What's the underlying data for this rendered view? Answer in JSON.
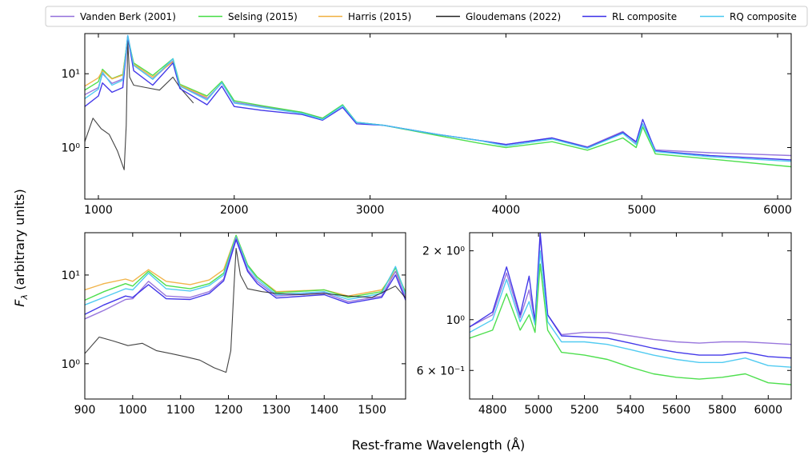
{
  "legend": {
    "entries": [
      {
        "key": "vdb",
        "label": "Vanden Berk (2001)",
        "color": "#9370db"
      },
      {
        "key": "selsing",
        "label": "Selsing (2015)",
        "color": "#44dd44"
      },
      {
        "key": "harris",
        "label": "Harris (2015)",
        "color": "#f0b040"
      },
      {
        "key": "glou",
        "label": "Gloudemans (2022)",
        "color": "#222222"
      },
      {
        "key": "rl",
        "label": "RL composite",
        "color": "#3a2ee8"
      },
      {
        "key": "rq",
        "label": "RQ composite",
        "color": "#48c8f0"
      }
    ],
    "placement": "top, outside"
  },
  "axes_labels": {
    "ylabel": "F_λ (arbitrary units)",
    "ylabel_main": "F",
    "ylabel_sub": "λ",
    "ylabel_rest": " (arbitrary units)",
    "xlabel": "Rest-frame Wavelength (Å)"
  },
  "chart_data": [
    {
      "id": "top",
      "type": "line",
      "xscale": "linear",
      "yscale": "log",
      "xlim": [
        900,
        6100
      ],
      "ylim": [
        0.2,
        35
      ],
      "grid": false,
      "xticks": [
        1000,
        2000,
        3000,
        4000,
        5000,
        6000
      ],
      "xtick_labels": [
        "1000",
        "2000",
        "3000",
        "4000",
        "5000",
        "6000"
      ],
      "yticks": [
        1,
        10
      ],
      "ytick_labels": [
        "10⁰",
        "10¹"
      ],
      "series": [
        {
          "key": "vdb",
          "x": [
            900,
            1000,
            1030,
            1100,
            1180,
            1216,
            1260,
            1400,
            1549,
            1600,
            1800,
            1909,
            2000,
            2200,
            2500,
            2650,
            2798,
            2900,
            3100,
            3500,
            3800,
            4000,
            4340,
            4600,
            4861,
            4959,
            5007,
            5100,
            5500,
            6100
          ],
          "y": [
            5.2,
            6.5,
            10.0,
            7.4,
            8.5,
            33.0,
            13.0,
            8.5,
            15.0,
            6.8,
            4.6,
            7.5,
            4.1,
            3.6,
            3.0,
            2.5,
            3.7,
            2.2,
            2.0,
            1.5,
            1.25,
            1.1,
            1.35,
            1.02,
            1.65,
            1.15,
            2.1,
            0.93,
            0.85,
            0.78
          ]
        },
        {
          "key": "selsing",
          "x": [
            900,
            1000,
            1030,
            1100,
            1180,
            1216,
            1260,
            1400,
            1549,
            1600,
            1800,
            1909,
            2000,
            2200,
            2500,
            2650,
            2798,
            2900,
            3100,
            3500,
            3800,
            4000,
            4340,
            4600,
            4861,
            4959,
            5007,
            5100,
            5500,
            6100
          ],
          "y": [
            6.0,
            7.8,
            11.5,
            8.6,
            9.8,
            31.0,
            14.0,
            9.5,
            16.0,
            7.2,
            5.0,
            7.9,
            4.3,
            3.7,
            3.0,
            2.5,
            3.8,
            2.2,
            2.0,
            1.45,
            1.15,
            1.0,
            1.2,
            0.92,
            1.35,
            1.0,
            1.9,
            0.82,
            0.7,
            0.55
          ]
        },
        {
          "key": "harris",
          "x": [
            900,
            1000,
            1030,
            1100,
            1180,
            1216,
            1260,
            1400,
            1549,
            1600,
            1800
          ],
          "y": [
            6.8,
            8.8,
            11.0,
            8.5,
            9.6,
            30.0,
            13.5,
            9.0,
            14.5,
            7.0,
            4.8
          ]
        },
        {
          "key": "glou",
          "x": [
            900,
            960,
            1020,
            1080,
            1140,
            1190,
            1205,
            1216,
            1230,
            1260,
            1350,
            1450,
            1549,
            1600,
            1700
          ],
          "y": [
            1.2,
            2.5,
            1.8,
            1.5,
            0.9,
            0.5,
            2.0,
            28.0,
            9.0,
            7.0,
            6.5,
            6.0,
            9.0,
            6.5,
            4.0
          ]
        },
        {
          "key": "rl",
          "x": [
            900,
            1000,
            1030,
            1100,
            1180,
            1216,
            1260,
            1400,
            1549,
            1600,
            1800,
            1909,
            2000,
            2200,
            2500,
            2650,
            2798,
            2900,
            3100,
            3500,
            3800,
            4000,
            4340,
            4600,
            4861,
            4959,
            5007,
            5100,
            5500,
            6100
          ],
          "y": [
            3.6,
            5.0,
            7.5,
            5.6,
            6.5,
            32.0,
            11.0,
            7.0,
            14.0,
            6.3,
            3.8,
            6.8,
            3.6,
            3.2,
            2.8,
            2.35,
            3.5,
            2.1,
            2.0,
            1.5,
            1.25,
            1.1,
            1.35,
            1.0,
            1.6,
            1.2,
            2.4,
            0.9,
            0.78,
            0.68
          ]
        },
        {
          "key": "rq",
          "x": [
            900,
            1000,
            1030,
            1100,
            1180,
            1216,
            1260,
            1400,
            1549,
            1600,
            1800,
            1909,
            2000,
            2200,
            2500,
            2650,
            2798,
            2900,
            3100,
            3500,
            3800,
            4000,
            4340,
            4600,
            4861,
            4959,
            5007,
            5100,
            5500,
            6100
          ],
          "y": [
            4.6,
            6.2,
            10.5,
            7.0,
            8.2,
            33.0,
            13.0,
            8.4,
            16.0,
            6.8,
            4.4,
            7.6,
            4.0,
            3.5,
            2.9,
            2.4,
            3.7,
            2.2,
            2.0,
            1.5,
            1.25,
            1.05,
            1.3,
            0.98,
            1.55,
            1.1,
            2.1,
            0.88,
            0.75,
            0.65
          ]
        }
      ]
    },
    {
      "id": "bottom-left",
      "type": "line",
      "xscale": "linear",
      "yscale": "log",
      "xlim": [
        900,
        1570
      ],
      "ylim": [
        0.4,
        30
      ],
      "grid": false,
      "xticks": [
        900,
        1000,
        1100,
        1200,
        1300,
        1400,
        1500
      ],
      "xtick_labels": [
        "900",
        "1000",
        "1100",
        "1200",
        "1300",
        "1400",
        "1500"
      ],
      "yticks": [
        1,
        10
      ],
      "ytick_labels": [
        "10⁰",
        "10¹"
      ],
      "series": [
        {
          "key": "harris",
          "x": [
            900,
            940,
            985,
            1000,
            1033,
            1070,
            1120,
            1160,
            1190,
            1216,
            1240,
            1260,
            1300,
            1400,
            1450,
            1520,
            1549,
            1570
          ],
          "y": [
            6.8,
            8.0,
            9.0,
            8.5,
            11.5,
            8.5,
            7.8,
            8.8,
            11.5,
            28.0,
            13.0,
            9.5,
            6.5,
            6.8,
            5.8,
            6.8,
            11.0,
            6.5
          ]
        },
        {
          "key": "selsing",
          "x": [
            900,
            940,
            985,
            1000,
            1033,
            1070,
            1120,
            1160,
            1190,
            1216,
            1240,
            1260,
            1300,
            1400,
            1450,
            1520,
            1549,
            1570
          ],
          "y": [
            5.2,
            6.5,
            8.0,
            7.5,
            11.0,
            7.6,
            7.0,
            8.0,
            10.5,
            28.0,
            13.0,
            9.5,
            6.3,
            6.8,
            5.6,
            6.5,
            12.0,
            6.3
          ]
        },
        {
          "key": "rq",
          "x": [
            900,
            940,
            985,
            1000,
            1033,
            1070,
            1120,
            1160,
            1190,
            1216,
            1240,
            1260,
            1300,
            1400,
            1450,
            1520,
            1549,
            1570
          ],
          "y": [
            4.6,
            5.6,
            7.0,
            6.8,
            10.5,
            7.0,
            6.6,
            7.6,
            10.0,
            27.0,
            12.5,
            9.0,
            6.0,
            6.5,
            5.3,
            6.2,
            12.5,
            6.0
          ]
        },
        {
          "key": "vdb",
          "x": [
            900,
            940,
            985,
            1000,
            1033,
            1070,
            1120,
            1160,
            1190,
            1216,
            1240,
            1260,
            1300,
            1400,
            1450,
            1520,
            1549,
            1570
          ],
          "y": [
            3.2,
            4.0,
            5.3,
            5.4,
            8.5,
            5.8,
            5.6,
            6.5,
            9.0,
            26.0,
            11.5,
            8.5,
            5.8,
            6.3,
            5.0,
            5.8,
            11.0,
            5.5
          ]
        },
        {
          "key": "rl",
          "x": [
            900,
            940,
            985,
            1000,
            1033,
            1070,
            1120,
            1160,
            1190,
            1216,
            1240,
            1260,
            1300,
            1400,
            1450,
            1520,
            1549,
            1570
          ],
          "y": [
            3.6,
            4.6,
            5.8,
            5.6,
            7.8,
            5.4,
            5.3,
            6.2,
            8.6,
            25.0,
            11.0,
            8.0,
            5.5,
            6.0,
            4.8,
            5.6,
            10.0,
            5.2
          ]
        },
        {
          "key": "glou",
          "x": [
            900,
            930,
            960,
            990,
            1020,
            1050,
            1080,
            1110,
            1140,
            1170,
            1195,
            1205,
            1212,
            1216,
            1225,
            1240,
            1270,
            1300,
            1350,
            1400,
            1450,
            1500,
            1549,
            1570
          ],
          "y": [
            1.3,
            2.0,
            1.8,
            1.6,
            1.7,
            1.4,
            1.3,
            1.2,
            1.1,
            0.9,
            0.8,
            1.4,
            8.0,
            20.0,
            10.0,
            7.0,
            6.5,
            6.2,
            6.0,
            6.2,
            5.8,
            5.6,
            7.5,
            5.5
          ]
        }
      ]
    },
    {
      "id": "bottom-right",
      "type": "line",
      "xscale": "linear",
      "yscale": "log",
      "xlim": [
        4700,
        6100
      ],
      "ylim": [
        0.45,
        2.4
      ],
      "grid": false,
      "xticks": [
        4800,
        5000,
        5200,
        5400,
        5600,
        5800,
        6000
      ],
      "xtick_labels": [
        "4800",
        "5000",
        "5200",
        "5400",
        "5600",
        "5800",
        "6000"
      ],
      "yticks": [
        0.6,
        1,
        2
      ],
      "ytick_labels": [
        "6 × 10⁻¹",
        "10⁰",
        "2 × 10⁰"
      ],
      "series": [
        {
          "key": "vdb",
          "x": [
            4700,
            4800,
            4861,
            4920,
            4959,
            4985,
            5007,
            5040,
            5100,
            5200,
            5300,
            5400,
            5500,
            5600,
            5700,
            5800,
            5900,
            6000,
            6100
          ],
          "y": [
            0.93,
            1.05,
            1.6,
            1.02,
            1.35,
            0.98,
            2.3,
            1.05,
            0.86,
            0.88,
            0.88,
            0.85,
            0.82,
            0.8,
            0.79,
            0.8,
            0.8,
            0.79,
            0.78
          ]
        },
        {
          "key": "rl",
          "x": [
            4700,
            4800,
            4861,
            4920,
            4959,
            4985,
            5007,
            5040,
            5100,
            5200,
            5300,
            5400,
            5500,
            5600,
            5700,
            5800,
            5900,
            6000,
            6100
          ],
          "y": [
            0.93,
            1.08,
            1.7,
            1.05,
            1.55,
            0.98,
            2.4,
            1.05,
            0.85,
            0.84,
            0.83,
            0.79,
            0.75,
            0.72,
            0.7,
            0.7,
            0.72,
            0.69,
            0.68
          ]
        },
        {
          "key": "rq",
          "x": [
            4700,
            4800,
            4861,
            4920,
            4959,
            4985,
            5007,
            5040,
            5100,
            5200,
            5300,
            5400,
            5500,
            5600,
            5700,
            5800,
            5900,
            6000,
            6100
          ],
          "y": [
            0.88,
            1.0,
            1.5,
            0.98,
            1.2,
            0.95,
            2.0,
            0.98,
            0.8,
            0.8,
            0.78,
            0.74,
            0.7,
            0.67,
            0.65,
            0.65,
            0.68,
            0.63,
            0.62
          ]
        },
        {
          "key": "selsing",
          "x": [
            4700,
            4800,
            4861,
            4920,
            4959,
            4985,
            5007,
            5040,
            5100,
            5200,
            5300,
            5400,
            5500,
            5600,
            5700,
            5800,
            5900,
            6000,
            6100
          ],
          "y": [
            0.83,
            0.9,
            1.3,
            0.9,
            1.05,
            0.88,
            1.75,
            0.9,
            0.72,
            0.7,
            0.67,
            0.62,
            0.58,
            0.56,
            0.55,
            0.56,
            0.58,
            0.53,
            0.52
          ]
        }
      ]
    }
  ]
}
